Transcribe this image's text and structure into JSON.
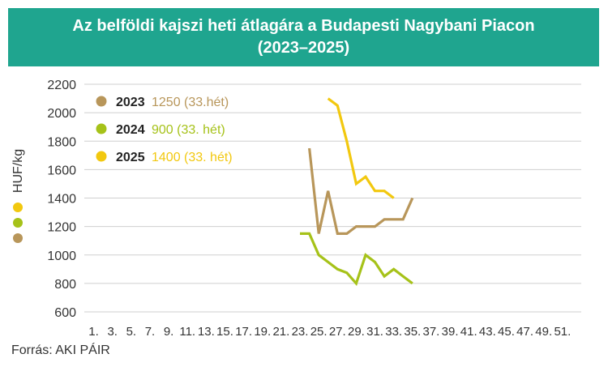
{
  "title_line1": "Az belföldi kajszi heti átlagára a Budapesti Nagybani Piacon",
  "title_line2": "(2023–2025)",
  "source": "Forrás: AKI PÁIR",
  "colors": {
    "header_bg": "#1fa58f",
    "series_2023": "#b8965a",
    "series_2024": "#a6c219",
    "series_2025": "#f2c80f",
    "grid": "#cfcfcf"
  },
  "chart_data": {
    "type": "line",
    "ylabel": "HUF/kg",
    "xlabel": "",
    "ylim": [
      600,
      2200
    ],
    "yticks": [
      600,
      800,
      1000,
      1200,
      1400,
      1600,
      1800,
      2000,
      2200
    ],
    "xticks": [
      "1.",
      "3.",
      "5.",
      "7.",
      "9.",
      "11.",
      "13.",
      "15.",
      "17.",
      "19.",
      "21.",
      "23.",
      "25.",
      "27.",
      "29.",
      "31.",
      "33.",
      "35.",
      "37.",
      "39.",
      "41.",
      "43.",
      "45.",
      "47.",
      "49.",
      "51."
    ],
    "grid": "horizontal",
    "legend_position": "top-left",
    "series": [
      {
        "name": "2023",
        "annotation": "1250 (33.hét)",
        "color": "#b8965a",
        "x": [
          24,
          25,
          26,
          27,
          28,
          29,
          30,
          31,
          32,
          33,
          34,
          35
        ],
        "values": [
          1750,
          1150,
          1450,
          1150,
          1150,
          1200,
          1200,
          1200,
          1250,
          1250,
          1250,
          1400
        ]
      },
      {
        "name": "2024",
        "annotation": "900 (33. hét)",
        "color": "#a6c219",
        "x": [
          23,
          24,
          25,
          26,
          27,
          28,
          29,
          30,
          31,
          32,
          33,
          34,
          35
        ],
        "values": [
          1150,
          1150,
          1000,
          950,
          900,
          875,
          800,
          1000,
          950,
          850,
          900,
          850,
          800
        ]
      },
      {
        "name": "2025",
        "annotation": "1400 (33. hét)",
        "color": "#f2c80f",
        "x": [
          26,
          27,
          28,
          29,
          30,
          31,
          32,
          33
        ],
        "values": [
          2100,
          2050,
          1800,
          1500,
          1550,
          1450,
          1450,
          1400
        ]
      }
    ]
  }
}
